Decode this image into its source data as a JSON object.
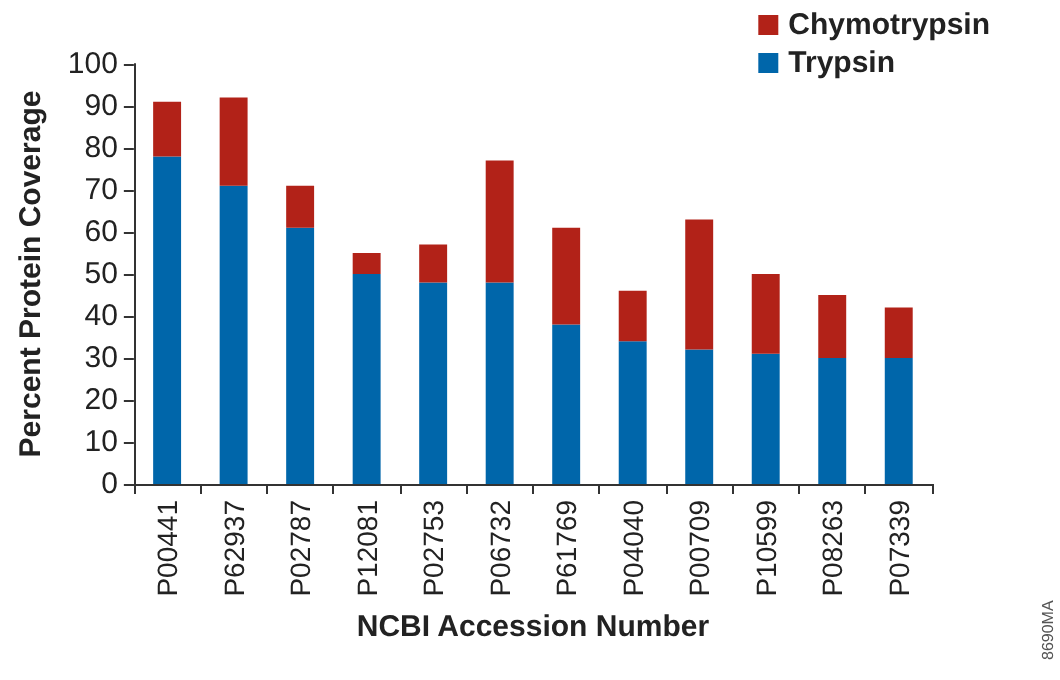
{
  "chart_data": {
    "type": "bar",
    "stacked": true,
    "xlabel": "NCBI Accession Number",
    "ylabel": "Percent Protein Coverage",
    "categories": [
      "P00441",
      "P62937",
      "P02787",
      "P12081",
      "P02753",
      "P06732",
      "P61769",
      "P04040",
      "P00709",
      "P10599",
      "P08263",
      "P07339"
    ],
    "series": [
      {
        "name": "Trypsin",
        "color": "#0066aa",
        "values": [
          78,
          71,
          61,
          50,
          48,
          48,
          38,
          34,
          32,
          31,
          30,
          30
        ]
      },
      {
        "name": "Chymotrypsin",
        "color": "#b22218",
        "values": [
          13,
          21,
          10,
          5,
          9,
          29,
          23,
          12,
          31,
          19,
          15,
          12
        ]
      }
    ],
    "ylim": [
      0,
      100
    ],
    "yticks": [
      0,
      10,
      20,
      30,
      40,
      50,
      60,
      70,
      80,
      90,
      100
    ],
    "grid": false,
    "legend": "top right",
    "annotations": [
      "8690MA"
    ]
  }
}
